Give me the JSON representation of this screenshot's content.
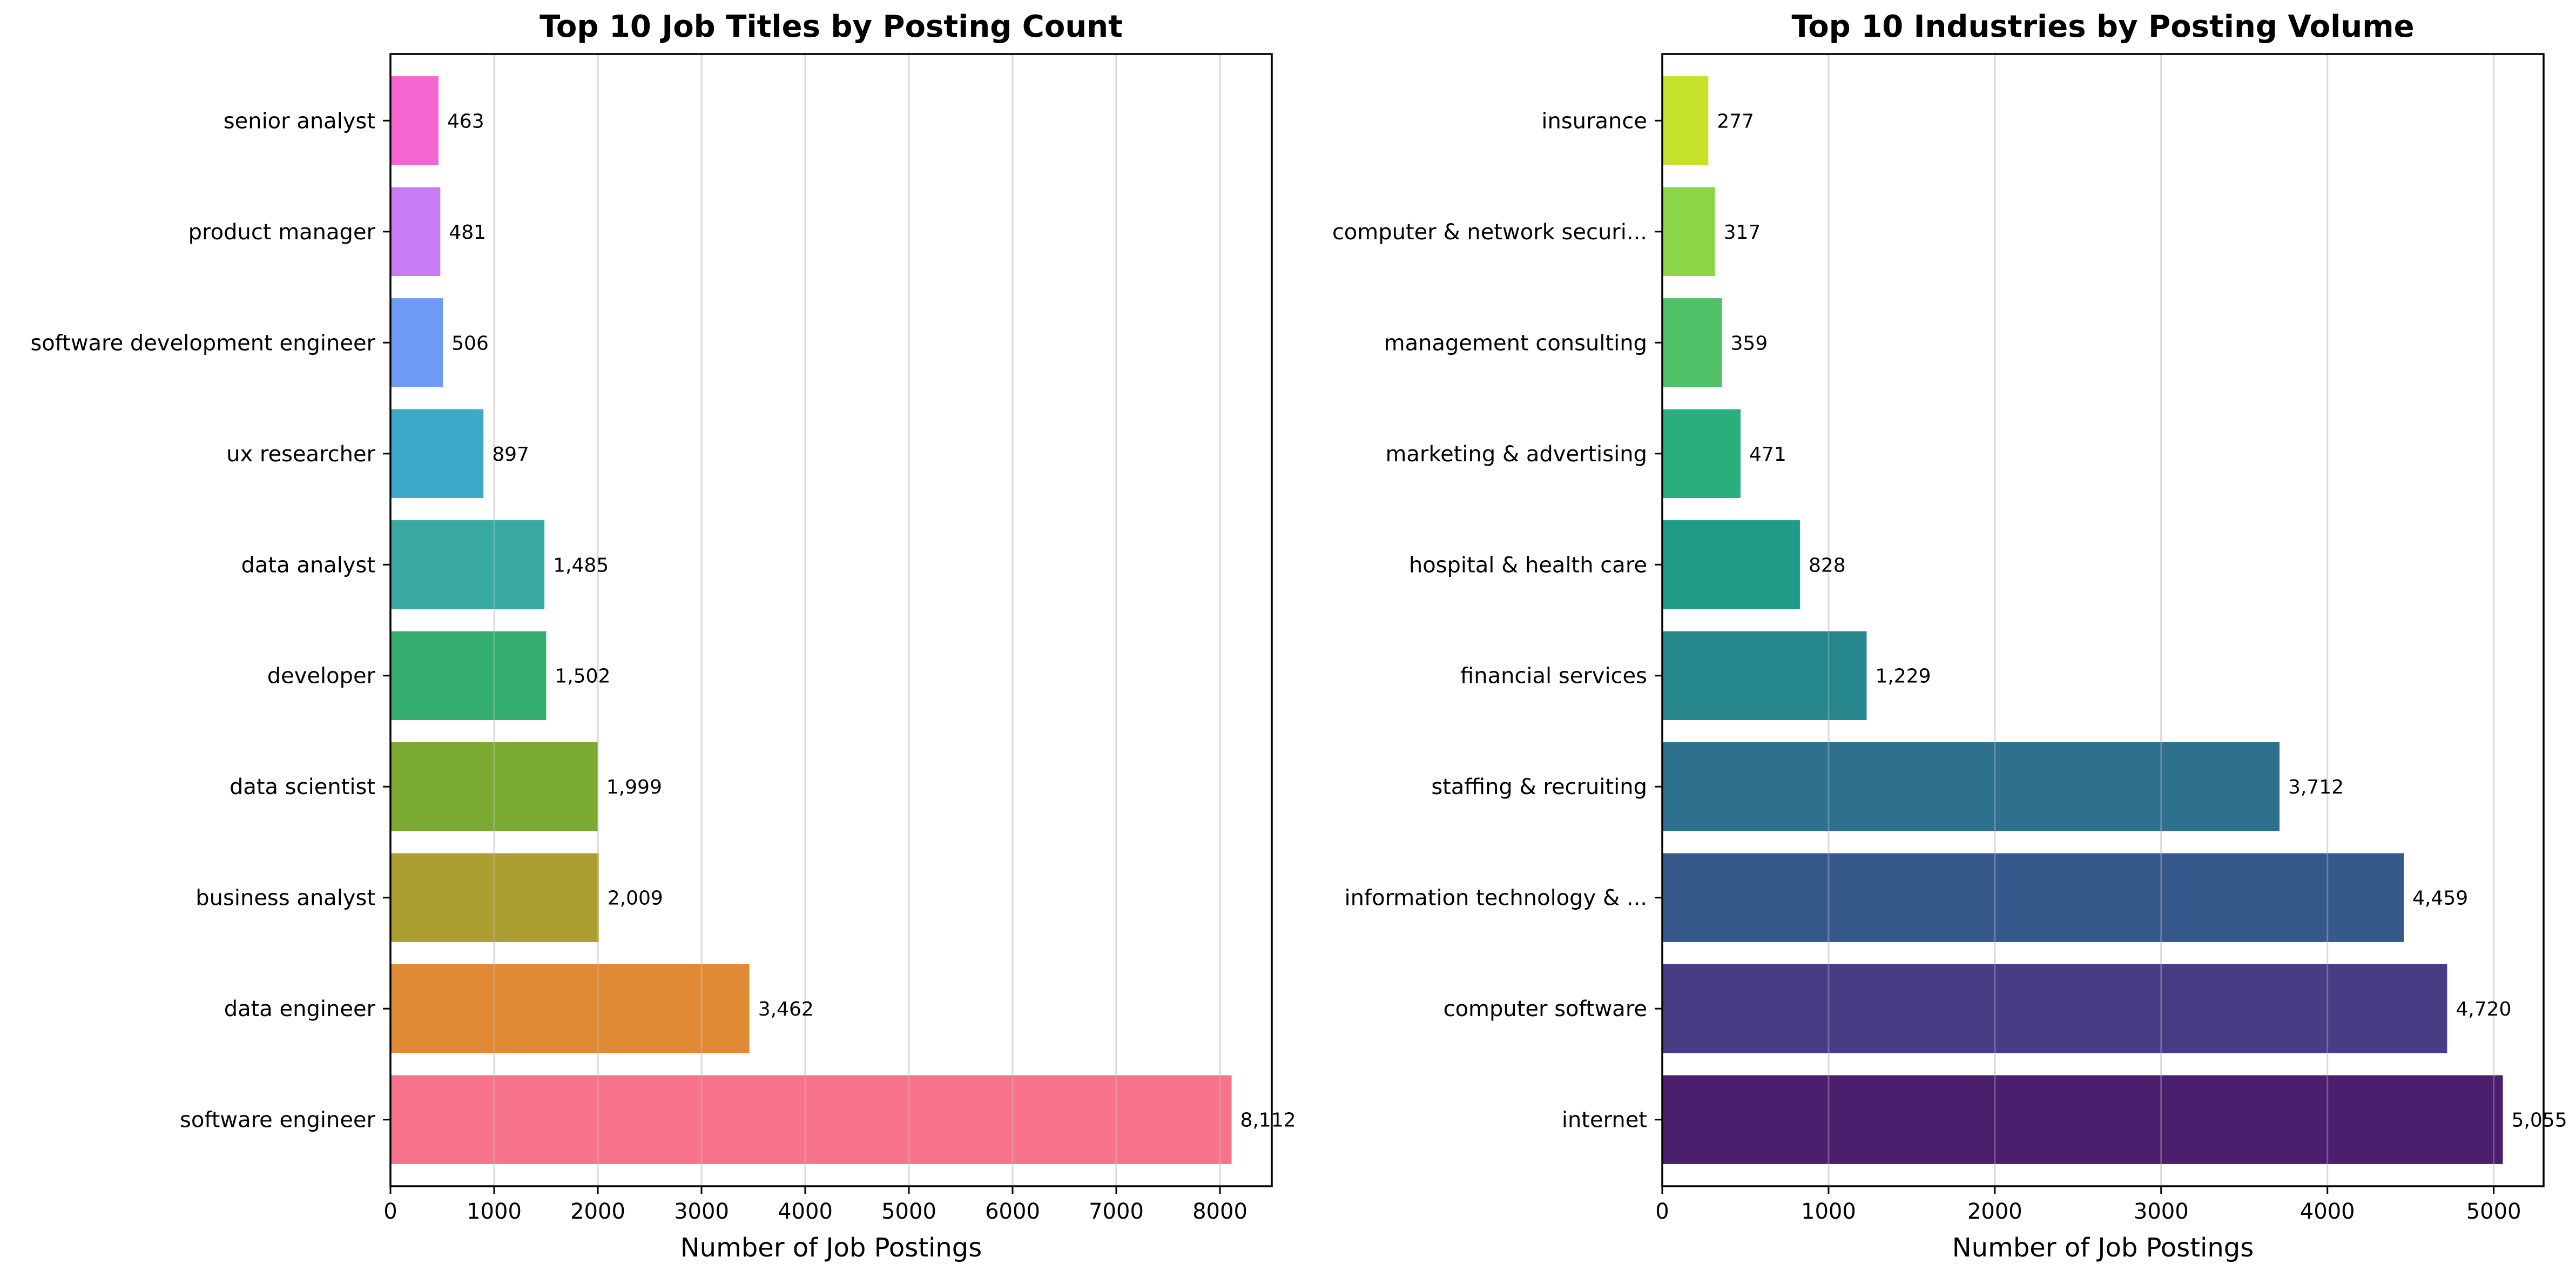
{
  "chart_data": [
    {
      "type": "bar",
      "orientation": "horizontal",
      "title": "Top 10 Job Titles by Posting Count",
      "xlabel": "Number of Job Postings",
      "ylabel": "",
      "categories": [
        "software engineer",
        "data engineer",
        "business analyst",
        "data scientist",
        "developer",
        "data analyst",
        "ux researcher",
        "software development engineer",
        "product manager",
        "senior analyst"
      ],
      "values": [
        8112,
        3462,
        2009,
        1999,
        1502,
        1485,
        897,
        506,
        481,
        463
      ],
      "value_labels": [
        "8,112",
        "3,462",
        "2,009",
        "1,999",
        "1,502",
        "1,485",
        "897",
        "506",
        "481",
        "463"
      ],
      "colors": [
        "#f7738b",
        "#e08a35",
        "#ad9e32",
        "#7aaa32",
        "#35ae72",
        "#38aaa2",
        "#3ca9c8",
        "#6f9bf5",
        "#c87cf4",
        "#f565cf"
      ],
      "xlim": [
        0,
        8500
      ],
      "xticks": [
        0,
        1000,
        2000,
        3000,
        4000,
        5000,
        6000,
        7000,
        8000
      ],
      "grid": "vertical"
    },
    {
      "type": "bar",
      "orientation": "horizontal",
      "title": "Top 10 Industries by Posting Volume",
      "xlabel": "Number of Job Postings",
      "ylabel": "",
      "categories": [
        "internet",
        "computer software",
        "information technology & ...",
        "staffing & recruiting",
        "financial services",
        "hospital & health care",
        "marketing & advertising",
        "management consulting",
        "computer & network securi...",
        "insurance"
      ],
      "values": [
        5055,
        4720,
        4459,
        3712,
        1229,
        828,
        471,
        359,
        317,
        277
      ],
      "value_labels": [
        "5,055",
        "4,720",
        "4,459",
        "3,712",
        "1,229",
        "828",
        "471",
        "359",
        "317",
        "277"
      ],
      "colors": [
        "#4a1f6e",
        "#463d84",
        "#36598c",
        "#2e718e",
        "#25878b",
        "#1e9c88",
        "#2aae7c",
        "#50c166",
        "#8bd546",
        "#c6e12a"
      ],
      "xlim": [
        0,
        5300
      ],
      "xticks": [
        0,
        1000,
        2000,
        3000,
        4000,
        5000
      ],
      "grid": "vertical"
    }
  ]
}
